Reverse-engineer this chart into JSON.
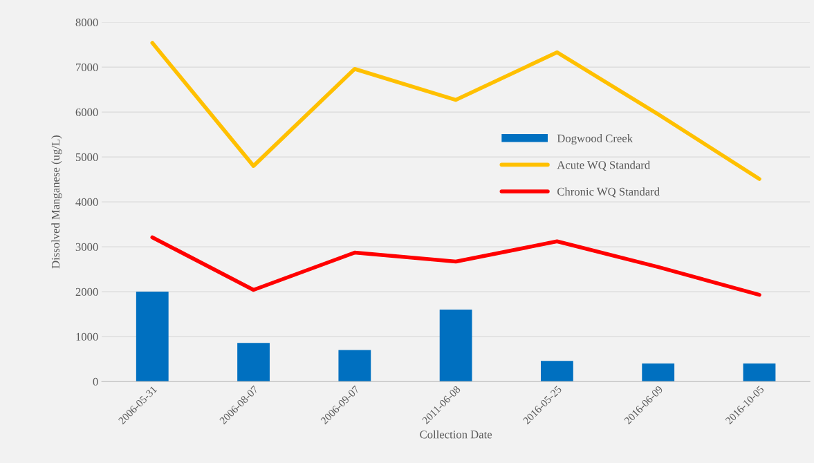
{
  "chart_data": {
    "type": "bar",
    "xlabel": "Collection Date",
    "ylabel": "Dissolved Manganese (ug/L)",
    "categories": [
      "2006-05-31",
      "2006-08-07",
      "2006-09-07",
      "2011-06-08",
      "2016-05-25",
      "2016-06-09",
      "2016-10-05"
    ],
    "series": [
      {
        "name": "Dogwood Creek",
        "color": "#0070c0",
        "values": [
          2000,
          860,
          700,
          1600,
          460,
          400,
          400
        ]
      },
      {
        "name": "Acute WQ Standard",
        "color": "#ffc000",
        "type": "line",
        "values": [
          7540,
          4800,
          6960,
          6270,
          7330,
          5950,
          4510
        ]
      },
      {
        "name": "Chronic WQ Standard",
        "color": "#ff0000",
        "type": "line",
        "values": [
          3210,
          2040,
          2870,
          2670,
          3120,
          2550,
          1930
        ]
      }
    ],
    "ylim": [
      0,
      8000
    ],
    "yticks": [
      0,
      1000,
      2000,
      3000,
      4000,
      5000,
      6000,
      7000,
      8000
    ],
    "grid": "y",
    "legend": "right"
  }
}
